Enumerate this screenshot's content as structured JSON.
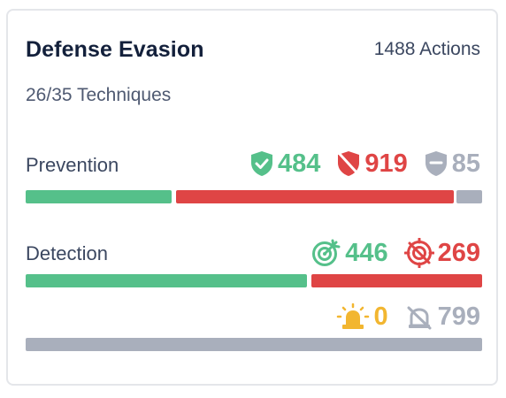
{
  "card": {
    "title": "Defense Evasion",
    "actions_label": "1488 Actions",
    "techniques_label": "26/35 Techniques"
  },
  "prevention": {
    "label": "Prevention",
    "prevented": "484",
    "not_prevented": "919",
    "no_result": "85"
  },
  "detection": {
    "label": "Detection",
    "detected": "446",
    "not_detected": "269",
    "alerted": "0",
    "not_alerted": "799"
  },
  "icons": {
    "prevented": "shield-check-icon",
    "not_prevented": "shield-off-icon",
    "no_result": "shield-minus-icon",
    "detected": "target-check-icon",
    "not_detected": "target-off-icon",
    "alerted": "siren-icon",
    "not_alerted": "bell-off-icon"
  },
  "colors": {
    "success": "#55c08a",
    "danger": "#df4545",
    "neutral": "#a9afbc",
    "warning": "#f2b630"
  }
}
